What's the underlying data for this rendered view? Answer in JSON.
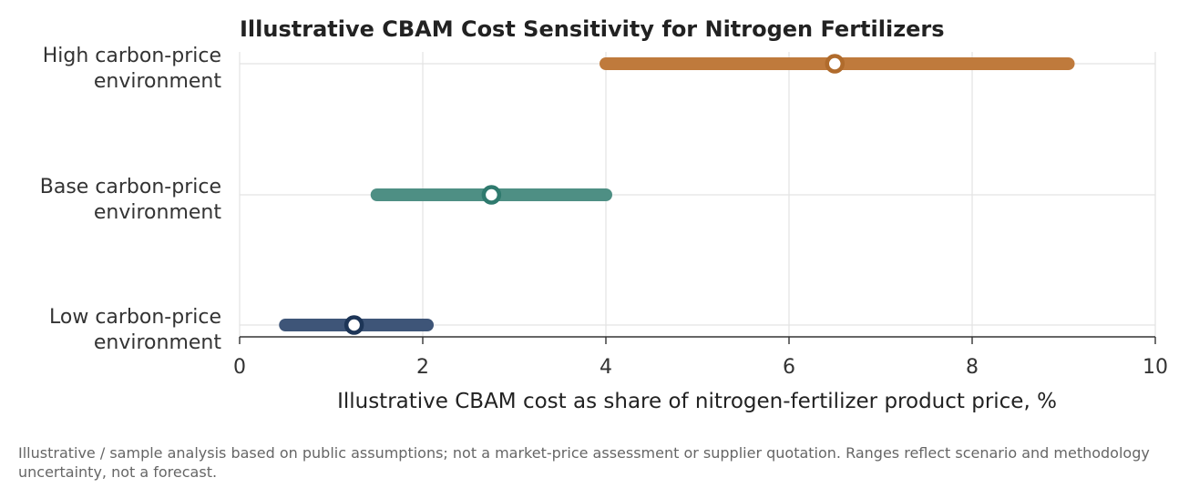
{
  "chart_data": {
    "type": "range",
    "title": "Illustrative CBAM Cost Sensitivity for Nitrogen Fertilizers",
    "xlabel": "Illustrative CBAM cost as share of nitrogen-fertilizer product price, %",
    "ylabel": "",
    "xlim": [
      0,
      10
    ],
    "xticks": [
      "0",
      "2",
      "4",
      "6",
      "8",
      "10"
    ],
    "grid": true,
    "categories": [
      {
        "line1": "High carbon-price",
        "line2": "environment"
      },
      {
        "line1": "Base carbon-price",
        "line2": "environment"
      },
      {
        "line1": "Low carbon-price",
        "line2": "environment"
      }
    ],
    "ranges": [
      {
        "low": 4.0,
        "high": 9.05,
        "mid": 6.5,
        "color": "#bf7a3c",
        "dot_color": "#b06b2c"
      },
      {
        "low": 1.5,
        "high": 4.0,
        "mid": 2.75,
        "color": "#4e8f84",
        "dot_color": "#2f7a6e"
      },
      {
        "low": 0.5,
        "high": 2.05,
        "mid": 1.25,
        "color": "#3e5578",
        "dot_color": "#1d3557"
      }
    ]
  },
  "footnote": "Illustrative / sample analysis based on public assumptions; not a market-price assessment or supplier quotation. Ranges reflect scenario and methodology uncertainty, not a forecast."
}
